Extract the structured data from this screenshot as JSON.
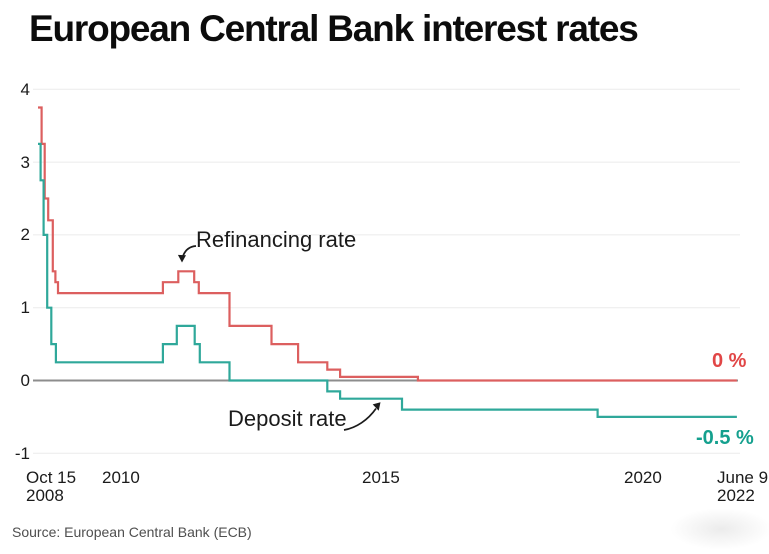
{
  "chart_data": {
    "type": "line",
    "title": "European Central Bank interest rates",
    "source": "Source: European Central Bank (ECB)",
    "step": "post",
    "xlabel": "",
    "ylabel": "",
    "ylim": [
      -1,
      4
    ],
    "x_domain_years": [
      2008.79,
      2022.44
    ],
    "grid": "horizontal",
    "legend_position": "none",
    "y_tick_values": [
      4,
      3,
      2,
      1,
      0,
      -1
    ],
    "y_tick_labels": [
      "4",
      "3",
      "2",
      "1",
      "0",
      "-1"
    ],
    "x_tick_labels": [
      [
        "Oct 15",
        "2008"
      ],
      [
        "2010"
      ],
      [
        "2015"
      ],
      [
        "2020"
      ],
      [
        "June 9",
        "2022"
      ]
    ],
    "series": [
      {
        "name": "Refinancing rate",
        "color": "#dc5f5f",
        "end_label": "0 %",
        "end_label_color": "#e14646",
        "points": [
          [
            2008.79,
            3.75
          ],
          [
            2008.86,
            3.25
          ],
          [
            2008.92,
            2.5
          ],
          [
            2008.99,
            2.2
          ],
          [
            2009.08,
            1.5
          ],
          [
            2009.13,
            1.35
          ],
          [
            2009.18,
            1.2
          ],
          [
            2011.23,
            1.35
          ],
          [
            2011.53,
            1.5
          ],
          [
            2011.84,
            1.35
          ],
          [
            2011.93,
            1.2
          ],
          [
            2012.53,
            0.75
          ],
          [
            2013.35,
            0.5
          ],
          [
            2013.87,
            0.25
          ],
          [
            2014.44,
            0.15
          ],
          [
            2014.69,
            0.05
          ],
          [
            2016.21,
            0.0
          ],
          [
            2022.44,
            0.0
          ]
        ]
      },
      {
        "name": "Deposit rate",
        "color": "#2fa89a",
        "end_label": "-0.5 %",
        "end_label_color": "#14a08e",
        "points": [
          [
            2008.79,
            3.25
          ],
          [
            2008.84,
            2.75
          ],
          [
            2008.9,
            2.0
          ],
          [
            2008.97,
            1.0
          ],
          [
            2009.05,
            0.5
          ],
          [
            2009.14,
            0.25
          ],
          [
            2011.23,
            0.5
          ],
          [
            2011.5,
            0.75
          ],
          [
            2011.85,
            0.5
          ],
          [
            2011.95,
            0.25
          ],
          [
            2012.53,
            0.0
          ],
          [
            2014.44,
            -0.15
          ],
          [
            2014.69,
            -0.25
          ],
          [
            2015.9,
            -0.4
          ],
          [
            2019.72,
            -0.5
          ],
          [
            2022.44,
            -0.5
          ]
        ]
      }
    ],
    "annotations": [
      {
        "text": "Refinancing rate",
        "points_to": "refinancing-rate line peak of 1.5 in 2011"
      },
      {
        "text": "Deposit rate",
        "points_to": "deposit-rate line at -0.25 in 2015"
      }
    ]
  }
}
